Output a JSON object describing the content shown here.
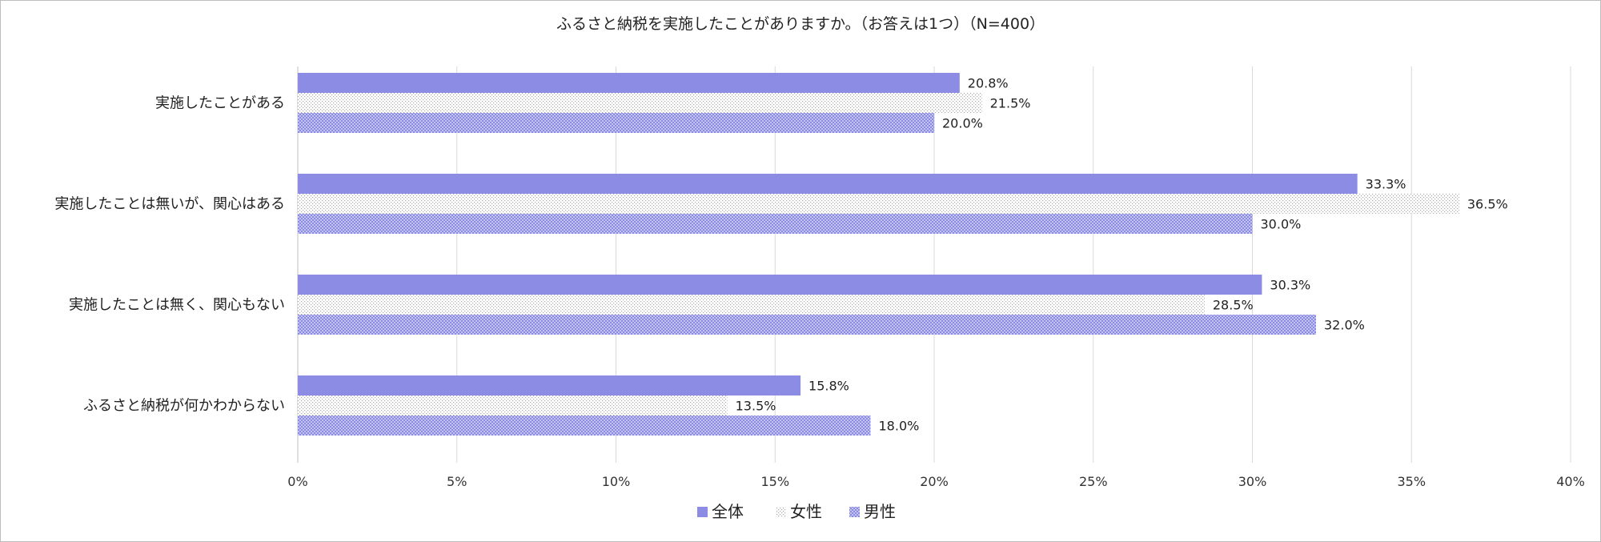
{
  "chart_data": {
    "type": "bar",
    "orientation": "horizontal",
    "title": "ふるさと納税を実施したことがありますか。（お答えは1つ）（N=400）",
    "categories": [
      "実施したことがある",
      "実施したことは無いが、関心はある",
      "実施したことは無く、関心もない",
      "ふるさと納税が何かわからない"
    ],
    "series": [
      {
        "name": "全体",
        "values": [
          20.8,
          33.3,
          30.3,
          15.8
        ],
        "value_labels": [
          "20.8%",
          "33.3%",
          "30.3%",
          "15.8%"
        ],
        "pattern": "solid",
        "color": "#8c8ce4"
      },
      {
        "name": "女性",
        "values": [
          21.5,
          36.5,
          28.5,
          13.5
        ],
        "value_labels": [
          "21.5%",
          "36.5%",
          "28.5%",
          "13.5%"
        ],
        "pattern": "dots",
        "color": "#c8c8c8"
      },
      {
        "name": "男性",
        "values": [
          20.0,
          30.0,
          32.0,
          18.0
        ],
        "value_labels": [
          "20.0%",
          "30.0%",
          "32.0%",
          "18.0%"
        ],
        "pattern": "checker",
        "color": "#9b9be8"
      }
    ],
    "x_ticks": [
      0,
      5,
      10,
      15,
      20,
      25,
      30,
      35,
      40
    ],
    "x_tick_labels": [
      "0%",
      "5%",
      "10%",
      "15%",
      "20%",
      "25%",
      "30%",
      "35%",
      "40%"
    ],
    "xlim": [
      0,
      40
    ],
    "grid": true,
    "legend_position": "bottom-center"
  }
}
